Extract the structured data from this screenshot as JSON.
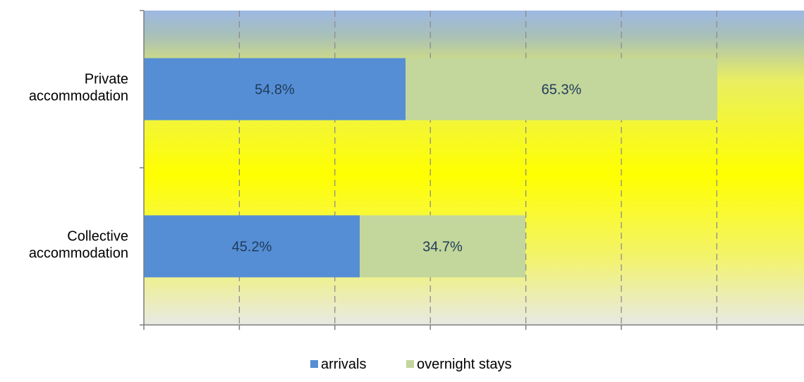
{
  "chart_data": {
    "type": "bar",
    "orientation": "horizontal",
    "stacked": true,
    "categories": [
      "Private accommodation",
      "Collective accommodation"
    ],
    "category_label_lines": [
      [
        "Private",
        "accommodation"
      ],
      [
        "Collective",
        "accommodation"
      ]
    ],
    "series": [
      {
        "name": "arrivals",
        "color": "#558ED5",
        "values": [
          54.8,
          45.2
        ],
        "labels": [
          "54.8%",
          "45.2%"
        ]
      },
      {
        "name": "overnight stays",
        "color": "#C3D69B",
        "values": [
          65.3,
          34.7
        ],
        "labels": [
          "65.3%",
          "34.7%"
        ]
      }
    ],
    "xlim": [
      0,
      140
    ],
    "x_gridline_step": 20,
    "grid": true,
    "grid_style": "dashed",
    "x_tick_labels_shown": false,
    "legend_position": "bottom",
    "plot_background": "vertical gradient blue-yellow-grey",
    "colors": {
      "label_text": "#1F3B5A",
      "axis": "#7F7F7F",
      "grid": "#8C8C8C"
    }
  }
}
